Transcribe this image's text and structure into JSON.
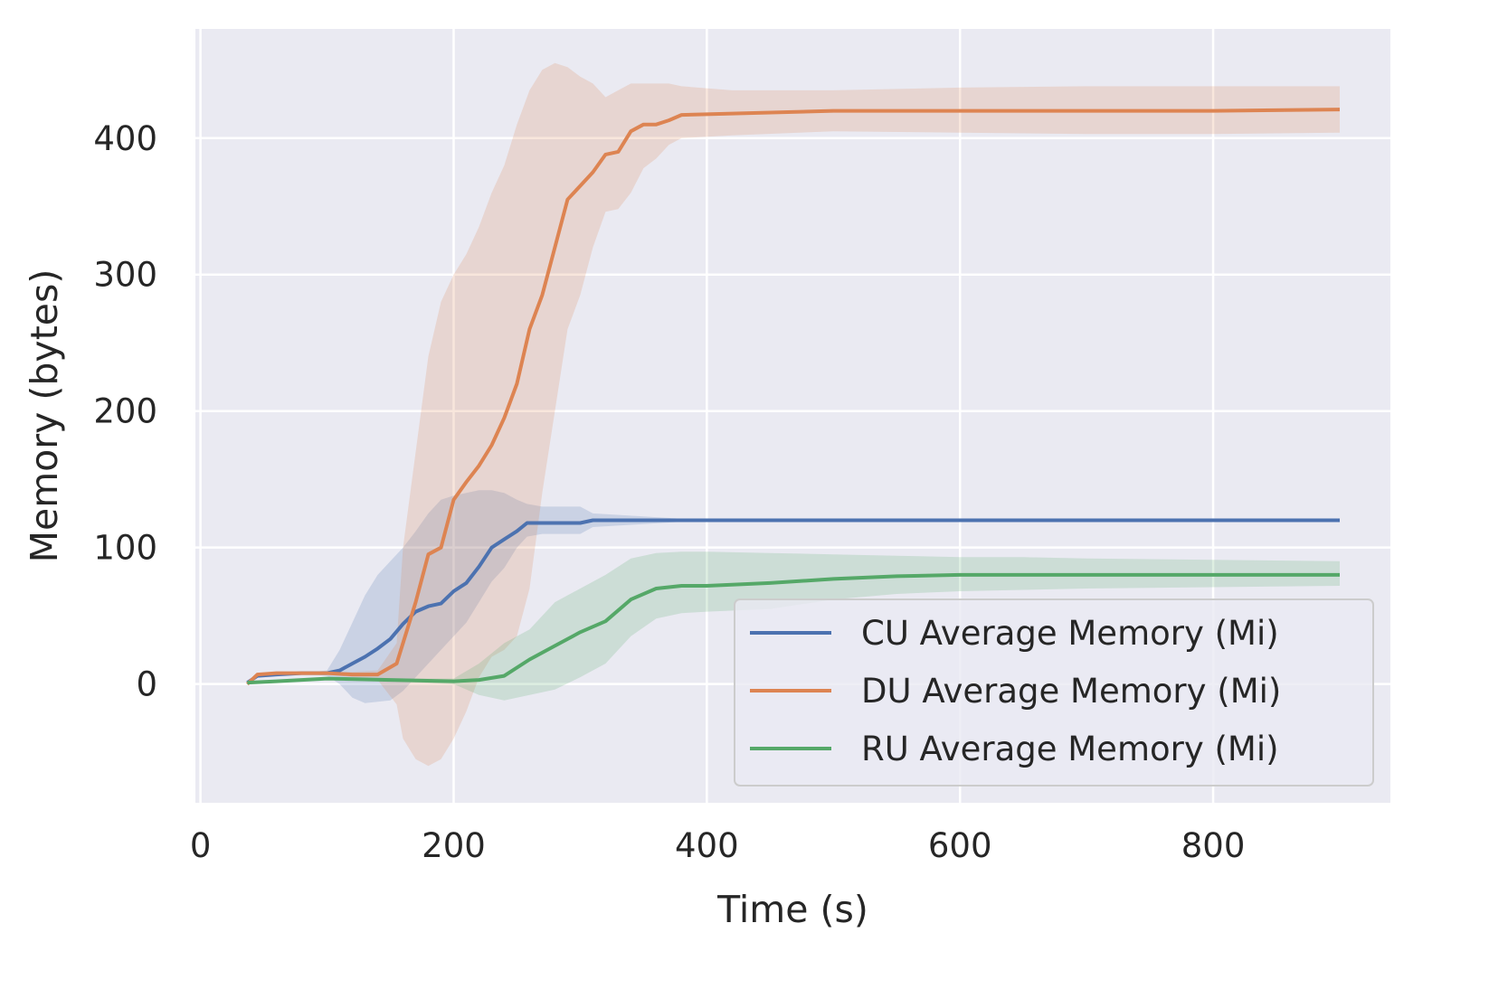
{
  "chart_data": {
    "type": "line",
    "title": "",
    "xlabel": "Time (s)",
    "ylabel": "Memory (bytes)",
    "xlim": [
      -4,
      940
    ],
    "ylim": [
      -87,
      480
    ],
    "xticks": [
      0,
      200,
      400,
      600,
      800
    ],
    "yticks": [
      0,
      100,
      200,
      300,
      400
    ],
    "grid": true,
    "legend": "lower-right",
    "series": [
      {
        "name": "CU Average Memory (Mi)",
        "color": "#4c72b0",
        "x": [
          37,
          45,
          60,
          80,
          100,
          110,
          120,
          130,
          140,
          150,
          160,
          170,
          180,
          190,
          200,
          210,
          220,
          230,
          240,
          250,
          258,
          270,
          300,
          310,
          400,
          500,
          600,
          700,
          800,
          900
        ],
        "y": [
          1,
          6,
          7,
          8,
          8,
          10,
          15,
          20,
          26,
          33,
          44,
          53,
          57,
          59,
          68,
          74,
          86,
          100,
          106,
          112,
          118,
          118,
          118,
          120,
          120,
          120,
          120,
          120,
          120,
          120
        ],
        "band_upper": [
          1,
          6,
          7,
          8,
          10,
          25,
          45,
          65,
          80,
          90,
          100,
          112,
          125,
          135,
          138,
          140,
          142,
          142,
          140,
          135,
          132,
          130,
          130,
          125,
          120,
          120,
          120,
          120,
          120,
          120
        ],
        "band_lower": [
          1,
          6,
          7,
          8,
          6,
          0,
          -10,
          -14,
          -13,
          -12,
          -5,
          5,
          15,
          25,
          35,
          45,
          60,
          75,
          85,
          100,
          108,
          110,
          110,
          115,
          120,
          120,
          120,
          120,
          120,
          120
        ]
      },
      {
        "name": "DU Average Memory (Mi)",
        "color": "#dd8452",
        "x": [
          37,
          45,
          60,
          80,
          100,
          120,
          140,
          155,
          160,
          170,
          180,
          190,
          200,
          210,
          220,
          230,
          240,
          250,
          260,
          270,
          280,
          290,
          300,
          310,
          320,
          330,
          340,
          350,
          360,
          370,
          380,
          420,
          500,
          600,
          700,
          800,
          900
        ],
        "y": [
          0,
          7,
          8,
          8,
          8,
          7,
          7,
          15,
          30,
          60,
          95,
          100,
          135,
          148,
          160,
          175,
          195,
          220,
          260,
          285,
          320,
          355,
          365,
          375,
          388,
          390,
          405,
          410,
          410,
          413,
          417,
          418,
          420,
          420,
          420,
          420,
          421
        ],
        "band_upper": [
          0,
          7,
          8,
          8,
          9,
          9,
          10,
          30,
          100,
          170,
          240,
          280,
          300,
          315,
          335,
          360,
          380,
          410,
          435,
          450,
          455,
          452,
          445,
          440,
          430,
          435,
          440,
          440,
          440,
          440,
          438,
          435,
          435,
          437,
          438,
          438,
          438
        ],
        "band_lower": [
          0,
          7,
          8,
          8,
          7,
          5,
          3,
          -15,
          -40,
          -55,
          -60,
          -55,
          -40,
          -20,
          5,
          20,
          25,
          35,
          70,
          140,
          200,
          260,
          285,
          320,
          346,
          348,
          360,
          378,
          385,
          395,
          400,
          402,
          405,
          404,
          403,
          403,
          404
        ]
      },
      {
        "name": "RU Average Memory (Mi)",
        "color": "#55a868",
        "x": [
          37,
          60,
          100,
          150,
          200,
          220,
          240,
          260,
          280,
          300,
          320,
          340,
          360,
          380,
          400,
          450,
          500,
          550,
          600,
          650,
          700,
          800,
          900
        ],
        "y": [
          1,
          2,
          4,
          3,
          2,
          3,
          6,
          18,
          28,
          38,
          46,
          62,
          70,
          72,
          72,
          74,
          77,
          79,
          80,
          80,
          80,
          80,
          80
        ],
        "band_upper": [
          1,
          2,
          4,
          4,
          4,
          15,
          30,
          40,
          60,
          70,
          80,
          92,
          96,
          97,
          97,
          96,
          95,
          94,
          93,
          93,
          92,
          91,
          90
        ],
        "band_lower": [
          1,
          2,
          4,
          2,
          0,
          -8,
          -12,
          -8,
          -4,
          5,
          15,
          35,
          48,
          52,
          53,
          55,
          62,
          66,
          68,
          69,
          70,
          71,
          72
        ]
      }
    ]
  }
}
